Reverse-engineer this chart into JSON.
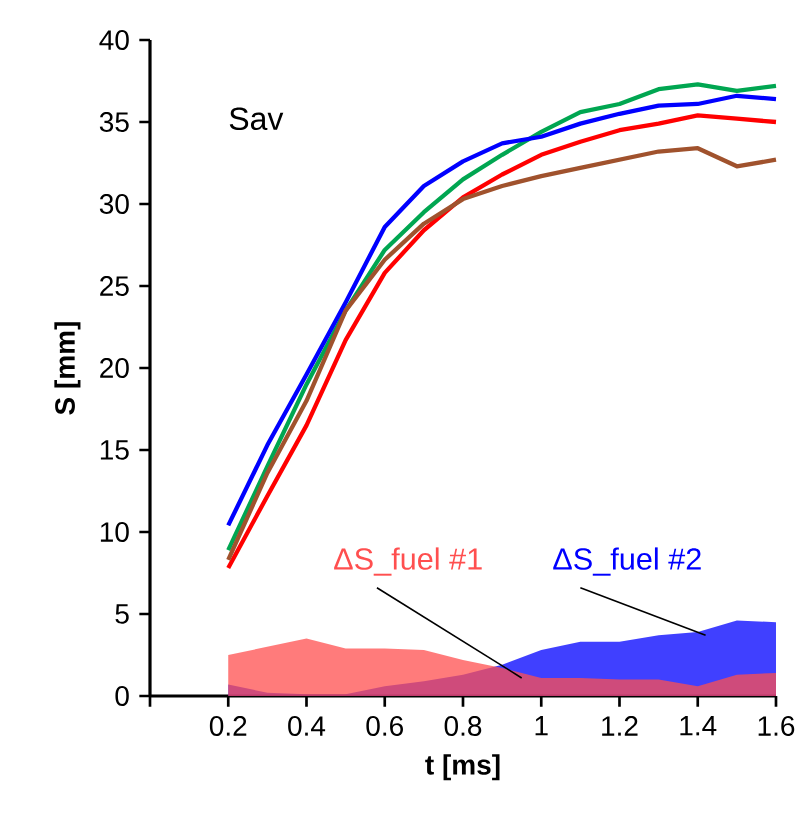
{
  "chart_data": {
    "type": "line",
    "xlabel": "t [ms]",
    "ylabel": "S [mm]",
    "annotations": [
      "Sav"
    ],
    "x": [
      0.2,
      0.3,
      0.4,
      0.5,
      0.6,
      0.7,
      0.8,
      0.9,
      1.0,
      1.1,
      1.2,
      1.3,
      1.4,
      1.5,
      1.6
    ],
    "xlim": [
      0,
      1.6
    ],
    "xticks": [
      {
        "value": 0,
        "label": null
      },
      0.2,
      0.4,
      0.6,
      0.8,
      1,
      1.2,
      1.4,
      1.6
    ],
    "ylim": [
      0,
      40
    ],
    "yticks": [
      0,
      5,
      10,
      15,
      20,
      25,
      30,
      35,
      40
    ],
    "series": [
      {
        "type": "area",
        "name": "ΔS_fuel #2",
        "color": "#0000ff",
        "values": [
          0.7,
          0.2,
          0.1,
          0.1,
          0.6,
          0.9,
          1.3,
          1.9,
          2.8,
          3.3,
          3.3,
          3.7,
          3.9,
          4.6,
          4.5
        ]
      },
      {
        "type": "area",
        "name": "ΔS_fuel #1",
        "color": "#ff4f4f",
        "values": [
          2.5,
          3.0,
          3.5,
          2.9,
          2.9,
          2.8,
          2.2,
          1.7,
          1.1,
          1.1,
          1.0,
          1.0,
          0.6,
          1.3,
          1.4
        ]
      },
      {
        "color": "#00a651",
        "values": [
          8.9,
          14.0,
          19.0,
          23.5,
          27.2,
          29.5,
          31.5,
          33.0,
          34.4,
          35.6,
          36.1,
          37.0,
          37.3,
          36.9,
          37.2
        ]
      },
      {
        "color": "#0000ff",
        "values": [
          10.4,
          15.3,
          19.6,
          24.0,
          28.6,
          31.1,
          32.6,
          33.7,
          34.1,
          34.9,
          35.5,
          36.0,
          36.1,
          36.6,
          36.4
        ]
      },
      {
        "color": "#ff0000",
        "values": [
          7.8,
          12.2,
          16.5,
          21.7,
          25.8,
          28.4,
          30.4,
          31.8,
          33.0,
          33.8,
          34.5,
          34.9,
          35.4,
          35.2,
          35.0
        ]
      },
      {
        "color": "#a0522d",
        "values": [
          8.3,
          13.6,
          18.0,
          23.5,
          26.6,
          28.8,
          30.3,
          31.1,
          31.7,
          32.2,
          32.7,
          33.2,
          33.4,
          32.3,
          32.7
        ]
      }
    ]
  }
}
